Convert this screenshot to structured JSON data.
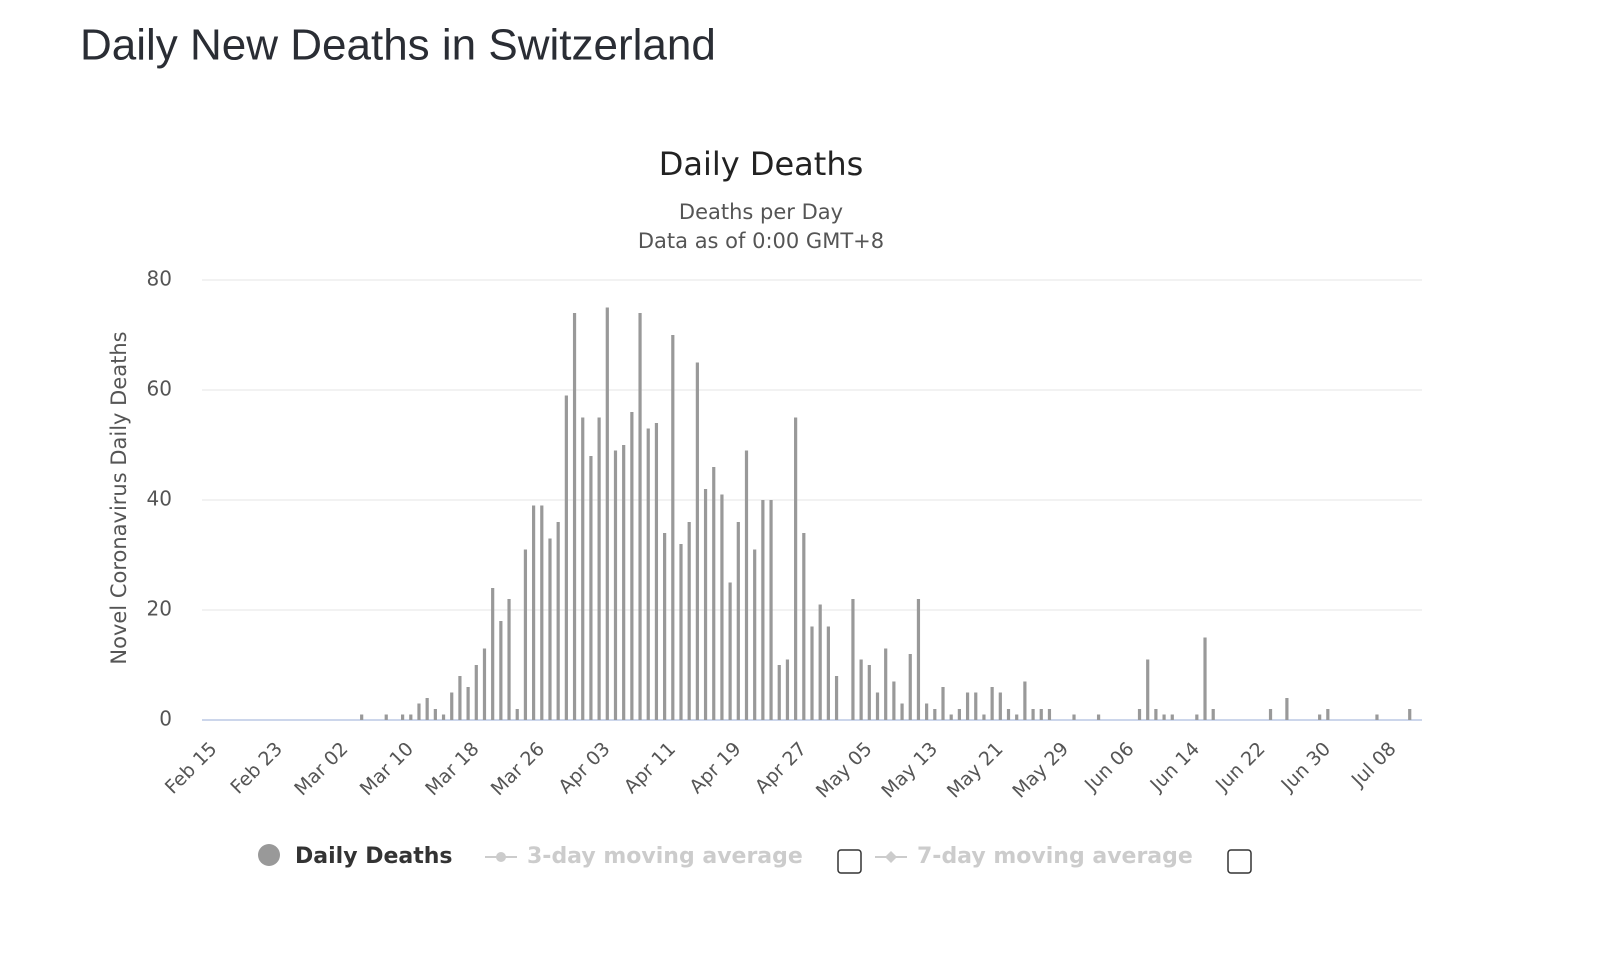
{
  "page_title": "Daily New Deaths in Switzerland",
  "chart_data": {
    "type": "bar",
    "title": "Daily Deaths",
    "subtitle": [
      "Deaths per Day",
      "Data as of 0:00 GMT+8"
    ],
    "y_label": "Novel Coronavirus Daily Deaths",
    "categories": [
      "Feb 15",
      null,
      null,
      null,
      null,
      null,
      null,
      null,
      "Feb 23",
      null,
      null,
      null,
      null,
      null,
      null,
      null,
      "Mar 02",
      null,
      null,
      null,
      null,
      null,
      null,
      null,
      "Mar 10",
      null,
      null,
      null,
      null,
      null,
      null,
      null,
      "Mar 18",
      null,
      null,
      null,
      null,
      null,
      null,
      null,
      "Mar 26",
      null,
      null,
      null,
      null,
      null,
      null,
      null,
      "Apr 03",
      null,
      null,
      null,
      null,
      null,
      null,
      null,
      "Apr 11",
      null,
      null,
      null,
      null,
      null,
      null,
      null,
      "Apr 19",
      null,
      null,
      null,
      null,
      null,
      null,
      null,
      "Apr 27",
      null,
      null,
      null,
      null,
      null,
      null,
      null,
      "May 05",
      null,
      null,
      null,
      null,
      null,
      null,
      null,
      "May 13",
      null,
      null,
      null,
      null,
      null,
      null,
      null,
      "May 21",
      null,
      null,
      null,
      null,
      null,
      null,
      null,
      "May 29",
      null,
      null,
      null,
      null,
      null,
      null,
      null,
      "Jun 06",
      null,
      null,
      null,
      null,
      null,
      null,
      null,
      "Jun 14",
      null,
      null,
      null,
      null,
      null,
      null,
      null,
      "Jun 22",
      null,
      null,
      null,
      null,
      null,
      null,
      null,
      "Jun 30",
      null,
      null,
      null,
      null,
      null,
      null,
      null,
      "Jul 08",
      null,
      null,
      null,
      null
    ],
    "series": [
      {
        "name": "Daily Deaths",
        "color": "#999999",
        "values": [
          0,
          0,
          0,
          0,
          0,
          0,
          0,
          0,
          0,
          0,
          0,
          0,
          0,
          0,
          0,
          0,
          0,
          0,
          0,
          1,
          0,
          0,
          1,
          0,
          1,
          1,
          3,
          4,
          2,
          1,
          5,
          8,
          6,
          10,
          13,
          24,
          18,
          22,
          2,
          31,
          39,
          39,
          33,
          36,
          59,
          74,
          55,
          48,
          55,
          75,
          49,
          50,
          56,
          74,
          53,
          54,
          34,
          70,
          32,
          36,
          65,
          42,
          46,
          41,
          25,
          36,
          49,
          31,
          40,
          40,
          10,
          11,
          55,
          34,
          17,
          21,
          17,
          8,
          0,
          22,
          11,
          10,
          5,
          13,
          7,
          3,
          12,
          22,
          3,
          2,
          6,
          1,
          2,
          5,
          5,
          1,
          6,
          5,
          2,
          1,
          7,
          2,
          2,
          2,
          0,
          0,
          1,
          0,
          0,
          1,
          0,
          0,
          0,
          0,
          2,
          11,
          2,
          1,
          1,
          0,
          0,
          1,
          15,
          2,
          0,
          0,
          0,
          0,
          0,
          0,
          2,
          0,
          4,
          0,
          0,
          0,
          1,
          2,
          0,
          0,
          0,
          0,
          0,
          1,
          0,
          0,
          0,
          2,
          0
        ]
      }
    ],
    "legend_extra": [
      "3-day moving average",
      "7-day moving average"
    ],
    "ylim": [
      0,
      80
    ],
    "yticks": [
      0,
      20,
      40,
      60,
      80
    ],
    "grid": true
  }
}
